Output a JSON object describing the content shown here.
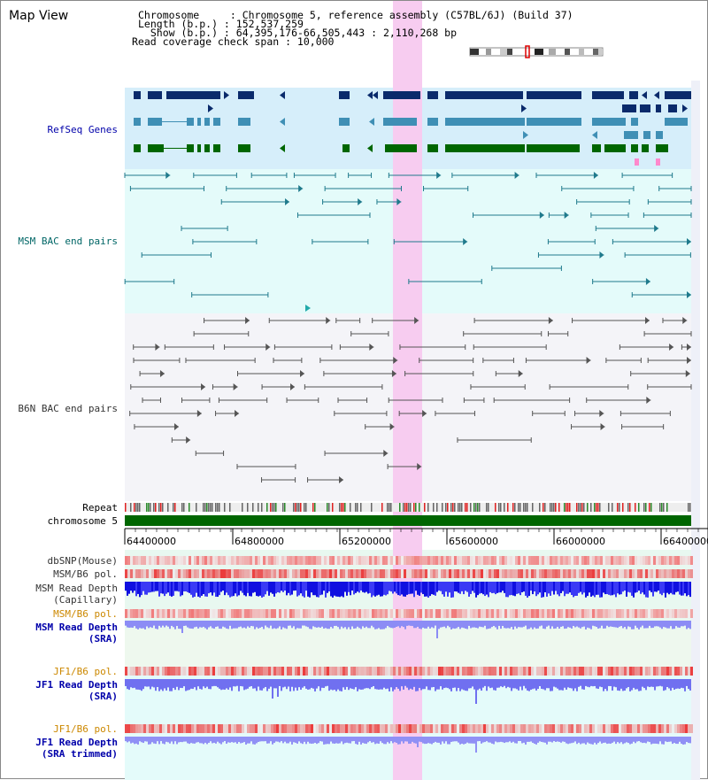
{
  "app": {
    "title": "Map View"
  },
  "info": {
    "chromosome_label": "Chromosome     : Chromosome 5, reference assembly (C57BL/6J) (Build 37)",
    "length_label": "Length (b.p.) : 152,537,259",
    "show_label": "  Show (b.p.) : 64,395,176-66,505,443 : 2,110,268 bp",
    "coverage_label": "Read coverage check span : 10,000"
  },
  "tracks": {
    "refseq": {
      "label": "RefSeq Genes",
      "color": "#0000aa"
    },
    "msm_bac": {
      "label": "MSM BAC end pairs",
      "color": "#006666"
    },
    "b6n_bac": {
      "label": "B6N BAC end pairs",
      "color": "#333333"
    },
    "repeat": {
      "label": "Repeat"
    },
    "chromosome": {
      "label": "chromosome 5"
    },
    "dbsnp": {
      "label": "dbSNP(Mouse)"
    },
    "msm_b6_pol_1": {
      "label": "MSM/B6 pol."
    },
    "msm_read_cap_1": {
      "label": "MSM Read Depth"
    },
    "msm_read_cap_2": {
      "label": "(Capillary)"
    },
    "msm_b6_pol_2": {
      "label": "MSM/B6 pol.",
      "color": "#cc8800"
    },
    "msm_sra_1": {
      "label": "MSM Read Depth"
    },
    "msm_sra_2": {
      "label": "(SRA)"
    },
    "jf1_pol_1": {
      "label": "JF1/B6 pol.",
      "color": "#cc8800"
    },
    "jf1_sra_1": {
      "label": "JF1 Read Depth"
    },
    "jf1_sra_2": {
      "label": "(SRA)"
    },
    "jf1_pol_2": {
      "label": "JF1/B6 pol.",
      "color": "#cc8800"
    },
    "jf1_trim_1": {
      "label": "JF1 Read Depth"
    },
    "jf1_trim_2": {
      "label": "(SRA trimmed)"
    }
  },
  "axis": {
    "ticks": [
      "64400000",
      "64800000",
      "65200000",
      "65600000",
      "66000000",
      "66400000"
    ]
  },
  "colors": {
    "highlight": "#f7ccf0",
    "refseq_bg": "#d6eefa",
    "bac_bg": "#e4fbfa",
    "b6n_bg": "#f4f4f8",
    "gene_dark": "#0a2a6b",
    "gene_mid": "#3f8fb5",
    "gene_green": "#006600",
    "chromosome_bar": "#006600"
  }
}
